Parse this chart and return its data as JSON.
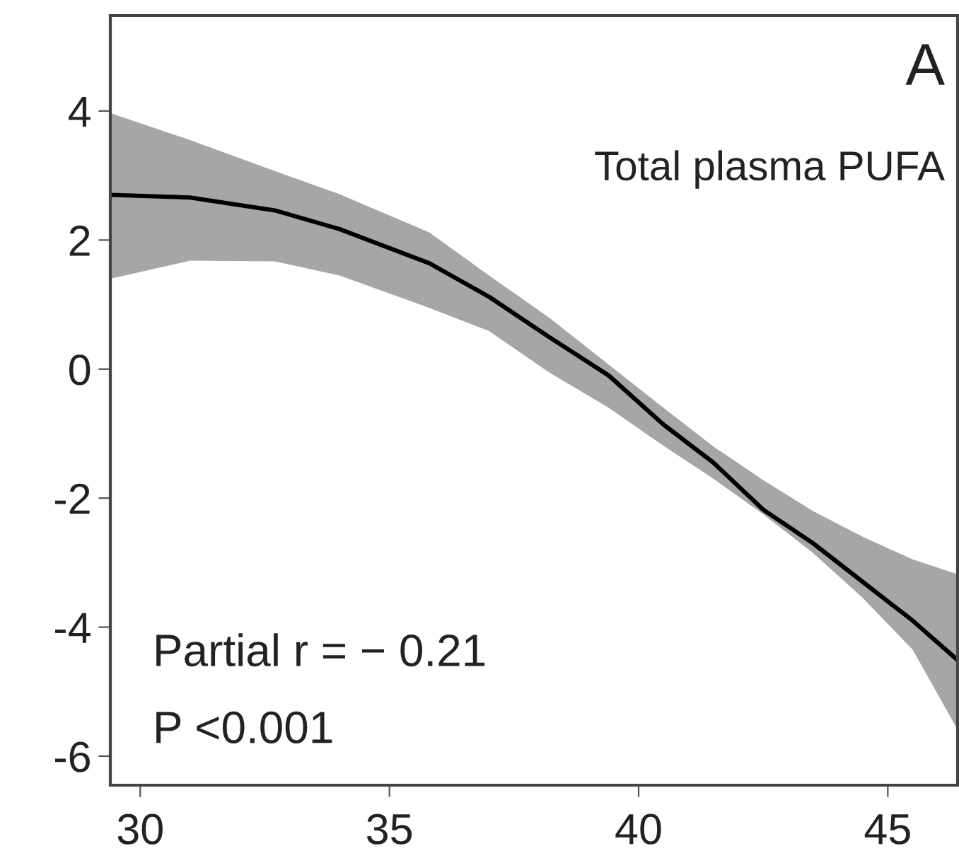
{
  "chart_data": {
    "type": "line",
    "xlim": [
      29.4,
      46.4
    ],
    "xticks": [
      30,
      35,
      40,
      45
    ],
    "ylim": [
      -6.45,
      5.48
    ],
    "yticks": [
      -6,
      -4,
      -2,
      0,
      2,
      4
    ],
    "grid": false,
    "legend": false,
    "marker": "none",
    "line_style": "solid",
    "annotations": [
      "A",
      "Total plasma PUFA",
      "Partial r = − 0.21",
      "P <0.001"
    ],
    "series": [
      {
        "color": "#000000",
        "x": [
          29.4,
          31,
          32.7,
          34,
          35.8,
          37,
          38.2,
          39.4,
          40.5,
          41.5,
          42.5,
          43.5,
          44.5,
          45.5,
          46.4
        ],
        "values": [
          2.7,
          2.66,
          2.46,
          2.17,
          1.64,
          1.12,
          0.5,
          -0.1,
          -0.86,
          -1.45,
          -2.18,
          -2.7,
          -3.3,
          -3.9,
          -4.51
        ],
        "upper": [
          3.97,
          3.55,
          3.07,
          2.71,
          2.12,
          1.45,
          0.8,
          0.07,
          -0.6,
          -1.2,
          -1.72,
          -2.2,
          -2.6,
          -2.95,
          -3.18
        ],
        "lower": [
          1.4,
          1.68,
          1.67,
          1.45,
          0.95,
          0.59,
          -0.05,
          -0.6,
          -1.19,
          -1.7,
          -2.25,
          -2.85,
          -3.55,
          -4.35,
          -5.59
        ]
      }
    ]
  }
}
